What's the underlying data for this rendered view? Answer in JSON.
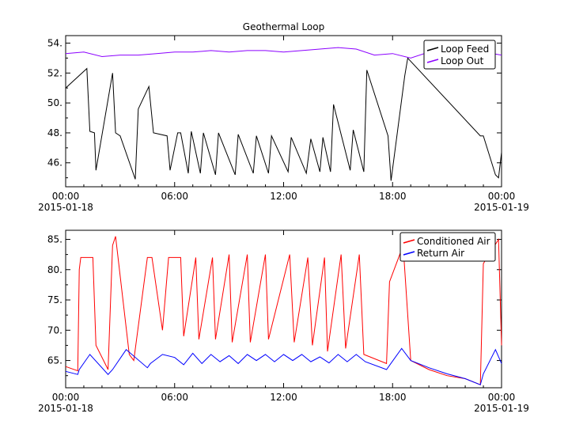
{
  "chart_data": [
    {
      "type": "line",
      "title": "Geothermal Loop",
      "xlabel": "",
      "ylabel": "",
      "ylim": [
        44.4,
        54.5
      ],
      "xlim": [
        "2015-01-18 00:00",
        "2015-01-19 00:00"
      ],
      "x_ticks": [
        {
          "label": "00:00",
          "sublabel": "2015-01-18"
        },
        {
          "label": "06:00",
          "sublabel": ""
        },
        {
          "label": "12:00",
          "sublabel": ""
        },
        {
          "label": "18:00",
          "sublabel": ""
        },
        {
          "label": "00:00",
          "sublabel": "2015-01-19"
        }
      ],
      "y_ticks": [
        "46.",
        "48.",
        "50.",
        "52.",
        "54."
      ],
      "y_tick_values": [
        46,
        48,
        50,
        52,
        54
      ],
      "grid": false,
      "legend_position": "top-right",
      "series": [
        {
          "name": "Loop Feed",
          "color": "#000000",
          "x": [
            "00:00",
            "01:10",
            "01:20",
            "01:35",
            "01:40",
            "02:35",
            "02:45",
            "03:00",
            "03:50",
            "04:00",
            "04:35",
            "04:50",
            "05:35",
            "05:45",
            "06:10",
            "06:20",
            "06:45",
            "06:55",
            "07:25",
            "07:35",
            "08:15",
            "08:25",
            "09:20",
            "09:30",
            "10:20",
            "10:30",
            "11:10",
            "11:20",
            "12:15",
            "12:25",
            "13:15",
            "13:30",
            "14:00",
            "14:10",
            "14:35",
            "14:45",
            "15:40",
            "15:50",
            "16:25",
            "16:35",
            "17:45",
            "17:55",
            "18:40",
            "18:50",
            "22:50",
            "23:00",
            "23:40",
            "23:50",
            "24:00"
          ],
          "y": [
            51.0,
            52.3,
            48.1,
            48.0,
            45.5,
            52.0,
            48.0,
            47.8,
            44.9,
            49.6,
            51.1,
            48.0,
            47.8,
            45.5,
            48.0,
            48.0,
            45.3,
            48.1,
            45.3,
            48.0,
            45.2,
            48.0,
            45.2,
            47.9,
            45.3,
            47.8,
            45.3,
            47.8,
            45.4,
            47.7,
            45.3,
            47.6,
            45.4,
            47.7,
            45.4,
            49.9,
            45.5,
            48.2,
            45.4,
            52.2,
            47.8,
            44.8,
            51.8,
            53.0,
            47.8,
            47.8,
            45.2,
            45.0,
            46.7
          ]
        },
        {
          "name": "Loop Out",
          "color": "#8b00ff",
          "x": [
            "00:00",
            "01:00",
            "02:00",
            "03:00",
            "04:00",
            "05:00",
            "06:00",
            "07:00",
            "08:00",
            "09:00",
            "10:00",
            "11:00",
            "12:00",
            "13:00",
            "14:00",
            "15:00",
            "16:00",
            "17:00",
            "18:00",
            "19:00",
            "20:00",
            "21:00",
            "22:00",
            "23:00",
            "24:00"
          ],
          "y": [
            53.3,
            53.4,
            53.1,
            53.2,
            53.2,
            53.3,
            53.4,
            53.4,
            53.5,
            53.4,
            53.5,
            53.5,
            53.4,
            53.5,
            53.6,
            53.7,
            53.6,
            53.2,
            53.3,
            53.0,
            53.4,
            53.2,
            53.3,
            53.4,
            53.2
          ]
        }
      ]
    },
    {
      "type": "line",
      "title": "",
      "xlabel": "",
      "ylabel": "",
      "ylim": [
        60.5,
        86.5
      ],
      "xlim": [
        "2015-01-18 00:00",
        "2015-01-19 00:00"
      ],
      "x_ticks": [
        {
          "label": "00:00",
          "sublabel": "2015-01-18"
        },
        {
          "label": "06:00",
          "sublabel": ""
        },
        {
          "label": "12:00",
          "sublabel": ""
        },
        {
          "label": "18:00",
          "sublabel": ""
        },
        {
          "label": "00:00",
          "sublabel": "2015-01-19"
        }
      ],
      "y_ticks": [
        "65.",
        "70.",
        "75.",
        "80.",
        "85."
      ],
      "y_tick_values": [
        65,
        70,
        75,
        80,
        85
      ],
      "grid": false,
      "legend_position": "top-right",
      "series": [
        {
          "name": "Conditioned Air",
          "color": "#ff0000",
          "x": [
            "00:00",
            "00:40",
            "00:45",
            "00:50",
            "01:30",
            "01:40",
            "02:20",
            "02:35",
            "02:45",
            "03:30",
            "03:45",
            "04:30",
            "04:45",
            "05:20",
            "05:40",
            "06:20",
            "06:30",
            "07:10",
            "07:20",
            "08:05",
            "08:15",
            "09:00",
            "09:10",
            "10:00",
            "10:10",
            "11:00",
            "11:10",
            "12:20",
            "12:35",
            "13:20",
            "13:35",
            "14:15",
            "14:25",
            "15:10",
            "15:25",
            "16:10",
            "16:25",
            "17:40",
            "17:50",
            "18:20",
            "18:35",
            "19:00",
            "20:00",
            "21:00",
            "22:00",
            "22:50",
            "23:00",
            "23:50",
            "24:00"
          ],
          "y": [
            64.0,
            63.3,
            80.0,
            82.0,
            82.0,
            67.5,
            63.5,
            84.0,
            85.5,
            66.0,
            65.0,
            82.0,
            82.0,
            70.0,
            82.0,
            82.0,
            69.0,
            82.0,
            68.5,
            82.0,
            68.5,
            82.5,
            68.0,
            82.5,
            68.0,
            82.5,
            68.5,
            82.5,
            68.0,
            82.0,
            67.5,
            82.0,
            66.5,
            82.5,
            67.0,
            82.5,
            66.0,
            64.5,
            78.0,
            82.0,
            84.0,
            65.0,
            63.5,
            62.5,
            62.0,
            61.0,
            81.0,
            85.0,
            67.5
          ]
        },
        {
          "name": "Return Air",
          "color": "#0000ff",
          "x": [
            "00:00",
            "00:40",
            "00:45",
            "01:20",
            "02:20",
            "02:35",
            "03:20",
            "04:30",
            "04:40",
            "05:20",
            "06:00",
            "06:30",
            "07:00",
            "07:30",
            "08:00",
            "08:30",
            "09:00",
            "09:30",
            "10:00",
            "10:30",
            "11:00",
            "11:30",
            "12:00",
            "12:30",
            "13:00",
            "13:30",
            "14:00",
            "14:30",
            "15:00",
            "15:30",
            "16:00",
            "16:30",
            "17:40",
            "17:50",
            "18:30",
            "19:00",
            "20:00",
            "21:00",
            "22:00",
            "22:50",
            "23:00",
            "23:40",
            "24:00"
          ],
          "y": [
            63.2,
            62.7,
            63.5,
            66.0,
            62.7,
            63.5,
            66.8,
            63.8,
            64.5,
            66.0,
            65.5,
            64.3,
            66.2,
            64.5,
            66.0,
            64.8,
            65.8,
            64.5,
            66.0,
            65.0,
            66.0,
            64.8,
            66.0,
            65.0,
            66.0,
            64.8,
            65.6,
            64.6,
            66.0,
            64.8,
            66.0,
            64.8,
            63.5,
            64.2,
            67.0,
            65.0,
            63.8,
            62.8,
            62.0,
            61.0,
            62.8,
            66.8,
            64.5
          ]
        }
      ]
    }
  ]
}
